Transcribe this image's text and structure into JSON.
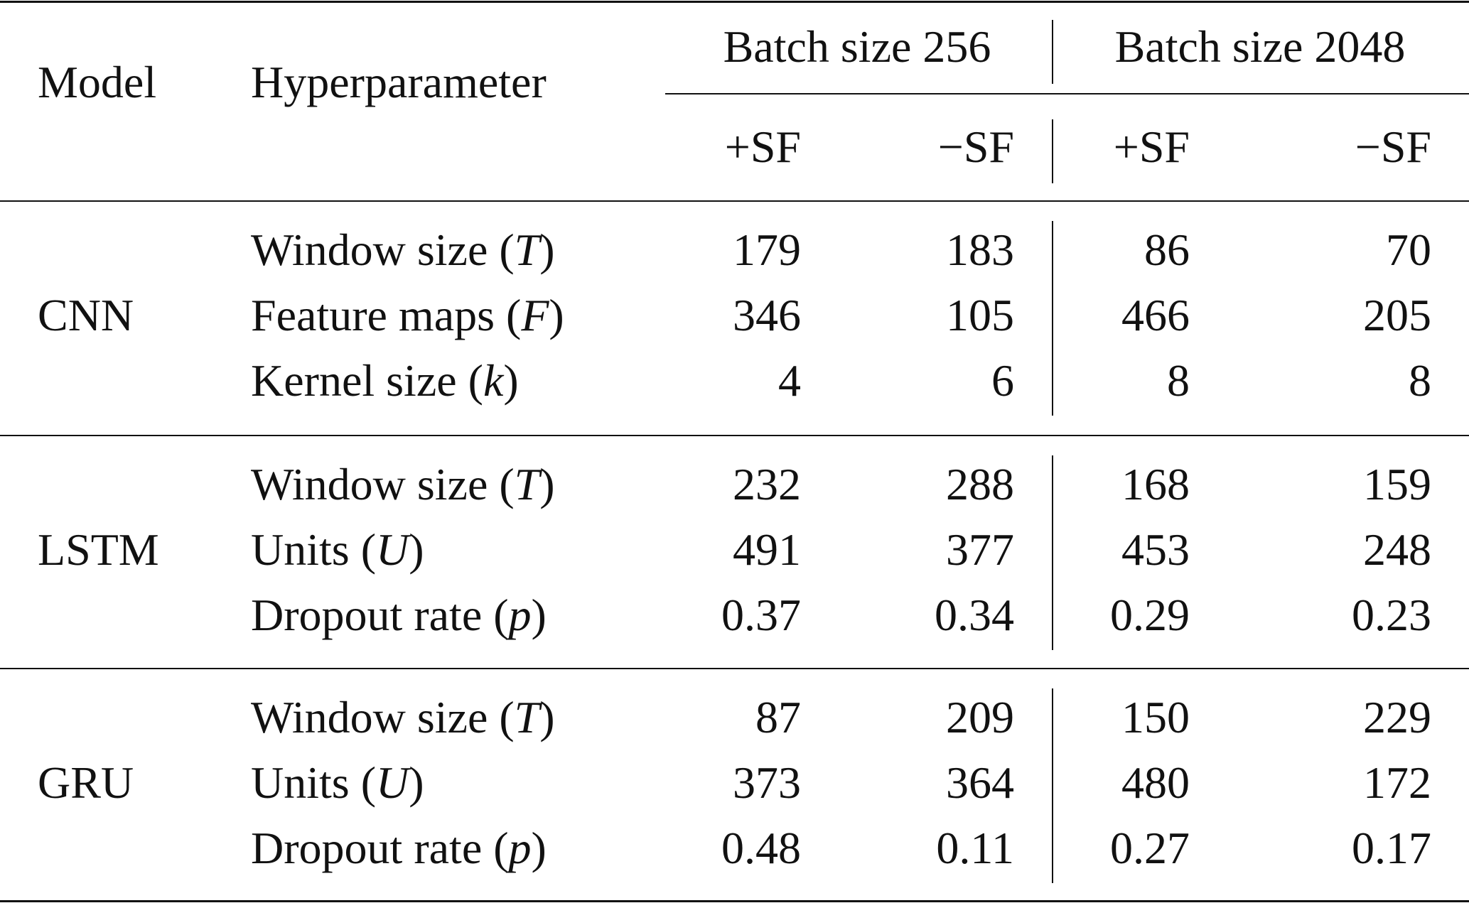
{
  "header": {
    "model": "Model",
    "hyperparameter": "Hyperparameter",
    "groups": [
      "Batch size 256",
      "Batch size 2048"
    ],
    "subcolumns": [
      "+SF",
      "−SF",
      "+SF",
      "−SF"
    ]
  },
  "blocks": [
    {
      "model": "CNN",
      "rows": [
        {
          "parts": [
            "Window size (",
            "T",
            ")"
          ],
          "values": [
            179,
            183,
            86,
            70
          ]
        },
        {
          "parts": [
            "Feature maps (",
            "F",
            ")"
          ],
          "values": [
            346,
            105,
            466,
            205
          ]
        },
        {
          "parts": [
            "Kernel size (",
            "k",
            ")"
          ],
          "values": [
            4,
            6,
            8,
            8
          ]
        }
      ]
    },
    {
      "model": "LSTM",
      "rows": [
        {
          "parts": [
            "Window size (",
            "T",
            ")"
          ],
          "values": [
            232,
            288,
            168,
            159
          ]
        },
        {
          "parts": [
            "Units (",
            "U",
            ")"
          ],
          "values": [
            491,
            377,
            453,
            248
          ]
        },
        {
          "parts": [
            "Dropout rate (",
            "p",
            ")"
          ],
          "values": [
            0.37,
            0.34,
            0.29,
            0.23
          ]
        }
      ]
    },
    {
      "model": "GRU",
      "rows": [
        {
          "parts": [
            "Window size (",
            "T",
            ")"
          ],
          "values": [
            87,
            209,
            150,
            229
          ]
        },
        {
          "parts": [
            "Units (",
            "U",
            ")"
          ],
          "values": [
            373,
            364,
            480,
            172
          ]
        },
        {
          "parts": [
            "Dropout rate (",
            "p",
            ")"
          ],
          "values": [
            0.48,
            0.11,
            0.27,
            0.17
          ]
        }
      ]
    }
  ]
}
